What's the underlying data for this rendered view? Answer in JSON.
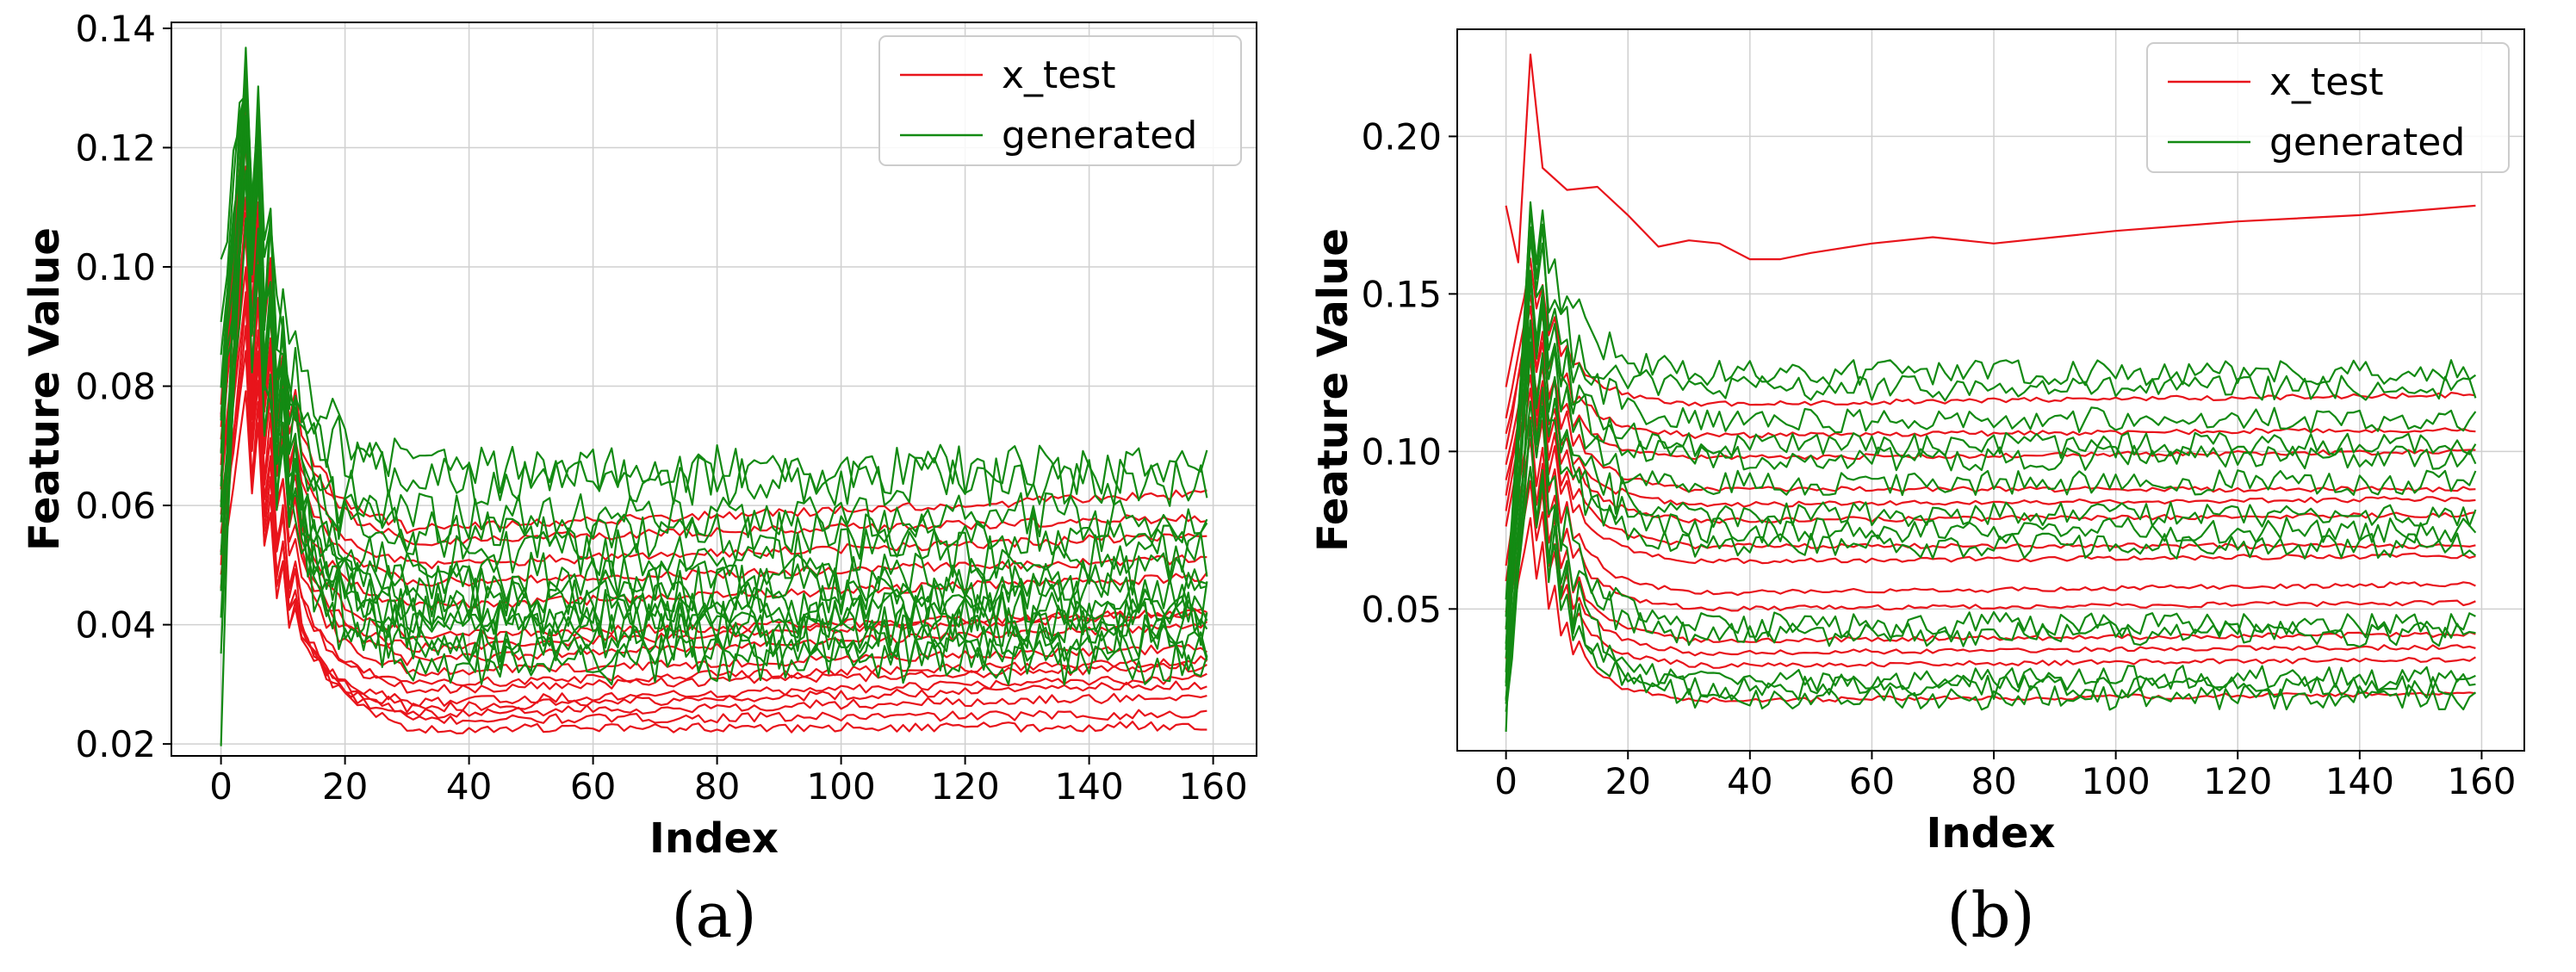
{
  "chart_data": [
    {
      "panel_label": "(a)",
      "type": "line",
      "xlabel": "Index",
      "ylabel": "Feature Value",
      "xlim": [
        -8,
        167
      ],
      "ylim": [
        0.018,
        0.141
      ],
      "x_ticks": [
        0,
        20,
        40,
        60,
        80,
        100,
        120,
        140,
        160
      ],
      "y_ticks": [
        0.02,
        0.04,
        0.06,
        0.08,
        0.1,
        0.12,
        0.14
      ],
      "y_tick_labels": [
        "0.02",
        "0.04",
        "0.06",
        "0.08",
        "0.10",
        "0.12",
        "0.14"
      ],
      "grid": true,
      "legend": {
        "position": "top-right",
        "entries": [
          {
            "label": "x_test",
            "color": "#e8141b"
          },
          {
            "label": "generated",
            "color": "#138a13"
          }
        ]
      },
      "x_range": [
        0,
        159
      ],
      "series_groups": [
        {
          "name": "x_test",
          "color": "#e8141b",
          "noise": 0.0008,
          "profiles": [
            {
              "start": 0.05,
              "peak": 0.108,
              "plateau": 0.0225,
              "end": 0.023
            },
            {
              "start": 0.046,
              "peak": 0.095,
              "plateau": 0.024,
              "end": 0.025
            },
            {
              "start": 0.052,
              "peak": 0.09,
              "plateau": 0.025,
              "end": 0.028
            },
            {
              "start": 0.055,
              "peak": 0.085,
              "plateau": 0.026,
              "end": 0.03
            },
            {
              "start": 0.048,
              "peak": 0.08,
              "plateau": 0.027,
              "end": 0.031
            },
            {
              "start": 0.058,
              "peak": 0.1,
              "plateau": 0.029,
              "end": 0.033
            },
            {
              "start": 0.06,
              "peak": 0.095,
              "plateau": 0.03,
              "end": 0.034
            },
            {
              "start": 0.062,
              "peak": 0.11,
              "plateau": 0.032,
              "end": 0.036
            },
            {
              "start": 0.066,
              "peak": 0.122,
              "plateau": 0.034,
              "end": 0.04
            },
            {
              "start": 0.064,
              "peak": 0.105,
              "plateau": 0.036,
              "end": 0.042
            },
            {
              "start": 0.068,
              "peak": 0.118,
              "plateau": 0.038,
              "end": 0.042
            },
            {
              "start": 0.07,
              "peak": 0.112,
              "plateau": 0.043,
              "end": 0.048
            },
            {
              "start": 0.072,
              "peak": 0.125,
              "plateau": 0.047,
              "end": 0.051
            },
            {
              "start": 0.074,
              "peak": 0.12,
              "plateau": 0.05,
              "end": 0.055
            },
            {
              "start": 0.076,
              "peak": 0.128,
              "plateau": 0.054,
              "end": 0.058
            },
            {
              "start": 0.078,
              "peak": 0.13,
              "plateau": 0.056,
              "end": 0.062
            }
          ]
        },
        {
          "name": "generated",
          "color": "#138a13",
          "noise": 0.0042,
          "profiles": [
            {
              "start": 0.025,
              "peak": 0.135,
              "plateau": 0.034,
              "end": 0.034
            },
            {
              "start": 0.04,
              "peak": 0.115,
              "plateau": 0.036,
              "end": 0.036
            },
            {
              "start": 0.05,
              "peak": 0.118,
              "plateau": 0.038,
              "end": 0.038
            },
            {
              "start": 0.045,
              "peak": 0.112,
              "plateau": 0.04,
              "end": 0.04
            },
            {
              "start": 0.055,
              "peak": 0.125,
              "plateau": 0.041,
              "end": 0.041
            },
            {
              "start": 0.06,
              "peak": 0.12,
              "plateau": 0.042,
              "end": 0.042
            },
            {
              "start": 0.062,
              "peak": 0.128,
              "plateau": 0.044,
              "end": 0.044
            },
            {
              "start": 0.065,
              "peak": 0.13,
              "plateau": 0.046,
              "end": 0.046
            },
            {
              "start": 0.07,
              "peak": 0.133,
              "plateau": 0.048,
              "end": 0.048
            },
            {
              "start": 0.075,
              "peak": 0.135,
              "plateau": 0.052,
              "end": 0.052
            },
            {
              "start": 0.08,
              "peak": 0.134,
              "plateau": 0.055,
              "end": 0.055
            },
            {
              "start": 0.085,
              "peak": 0.132,
              "plateau": 0.058,
              "end": 0.058
            },
            {
              "start": 0.09,
              "peak": 0.135,
              "plateau": 0.064,
              "end": 0.064
            },
            {
              "start": 0.1,
              "peak": 0.133,
              "plateau": 0.066,
              "end": 0.066
            }
          ]
        }
      ]
    },
    {
      "panel_label": "(b)",
      "type": "line",
      "xlabel": "Index",
      "ylabel": "Feature Value",
      "xlim": [
        -8,
        167
      ],
      "ylim": [
        0.005,
        0.234
      ],
      "x_ticks": [
        0,
        20,
        40,
        60,
        80,
        100,
        120,
        140,
        160
      ],
      "y_ticks": [
        0.05,
        0.1,
        0.15,
        0.2
      ],
      "y_tick_labels": [
        "0.05",
        "0.10",
        "0.15",
        "0.20"
      ],
      "grid": true,
      "legend": {
        "position": "top-right",
        "entries": [
          {
            "label": "x_test",
            "color": "#e8141b"
          },
          {
            "label": "generated",
            "color": "#138a13"
          }
        ]
      },
      "x_range": [
        0,
        159
      ],
      "explicit_series": [
        {
          "name": "x_test",
          "color": "#e8141b",
          "x": [
            0,
            2,
            4,
            6,
            10,
            15,
            20,
            25,
            30,
            35,
            40,
            45,
            50,
            60,
            70,
            80,
            90,
            100,
            120,
            140,
            159
          ],
          "y": [
            0.178,
            0.16,
            0.226,
            0.19,
            0.183,
            0.184,
            0.175,
            0.165,
            0.167,
            0.166,
            0.161,
            0.161,
            0.163,
            0.166,
            0.168,
            0.166,
            0.168,
            0.17,
            0.173,
            0.175,
            0.178
          ]
        }
      ],
      "series_groups": [
        {
          "name": "x_test",
          "color": "#e8141b",
          "noise": 0.0008,
          "profiles": [
            {
              "start": 0.12,
              "peak": 0.16,
              "plateau": 0.115,
              "end": 0.118
            },
            {
              "start": 0.11,
              "peak": 0.15,
              "plateau": 0.105,
              "end": 0.107
            },
            {
              "start": 0.105,
              "peak": 0.14,
              "plateau": 0.098,
              "end": 0.1
            },
            {
              "start": 0.1,
              "peak": 0.145,
              "plateau": 0.088,
              "end": 0.088
            },
            {
              "start": 0.095,
              "peak": 0.135,
              "plateau": 0.083,
              "end": 0.085
            },
            {
              "start": 0.09,
              "peak": 0.13,
              "plateau": 0.078,
              "end": 0.08
            },
            {
              "start": 0.085,
              "peak": 0.128,
              "plateau": 0.07,
              "end": 0.07
            },
            {
              "start": 0.08,
              "peak": 0.125,
              "plateau": 0.065,
              "end": 0.067
            },
            {
              "start": 0.075,
              "peak": 0.12,
              "plateau": 0.055,
              "end": 0.058
            },
            {
              "start": 0.065,
              "peak": 0.11,
              "plateau": 0.05,
              "end": 0.052
            },
            {
              "start": 0.06,
              "peak": 0.105,
              "plateau": 0.04,
              "end": 0.042
            },
            {
              "start": 0.05,
              "peak": 0.095,
              "plateau": 0.036,
              "end": 0.038
            },
            {
              "start": 0.045,
              "peak": 0.09,
              "plateau": 0.032,
              "end": 0.034
            },
            {
              "start": 0.035,
              "peak": 0.08,
              "plateau": 0.021,
              "end": 0.023
            }
          ]
        },
        {
          "name": "generated",
          "color": "#138a13",
          "noise": 0.004,
          "profiles": [
            {
              "start": 0.015,
              "peak": 0.185,
              "plateau": 0.125,
              "end": 0.125
            },
            {
              "start": 0.03,
              "peak": 0.17,
              "plateau": 0.12,
              "end": 0.12
            },
            {
              "start": 0.04,
              "peak": 0.175,
              "plateau": 0.11,
              "end": 0.11
            },
            {
              "start": 0.05,
              "peak": 0.165,
              "plateau": 0.102,
              "end": 0.102
            },
            {
              "start": 0.055,
              "peak": 0.16,
              "plateau": 0.098,
              "end": 0.098
            },
            {
              "start": 0.045,
              "peak": 0.155,
              "plateau": 0.09,
              "end": 0.09
            },
            {
              "start": 0.04,
              "peak": 0.15,
              "plateau": 0.08,
              "end": 0.08
            },
            {
              "start": 0.035,
              "peak": 0.145,
              "plateau": 0.075,
              "end": 0.075
            },
            {
              "start": 0.03,
              "peak": 0.14,
              "plateau": 0.07,
              "end": 0.07
            },
            {
              "start": 0.025,
              "peak": 0.13,
              "plateau": 0.045,
              "end": 0.045
            },
            {
              "start": 0.02,
              "peak": 0.12,
              "plateau": 0.042,
              "end": 0.042
            },
            {
              "start": 0.02,
              "peak": 0.11,
              "plateau": 0.028,
              "end": 0.028
            },
            {
              "start": 0.018,
              "peak": 0.105,
              "plateau": 0.025,
              "end": 0.025
            },
            {
              "start": 0.015,
              "peak": 0.1,
              "plateau": 0.022,
              "end": 0.022
            }
          ]
        }
      ]
    }
  ]
}
